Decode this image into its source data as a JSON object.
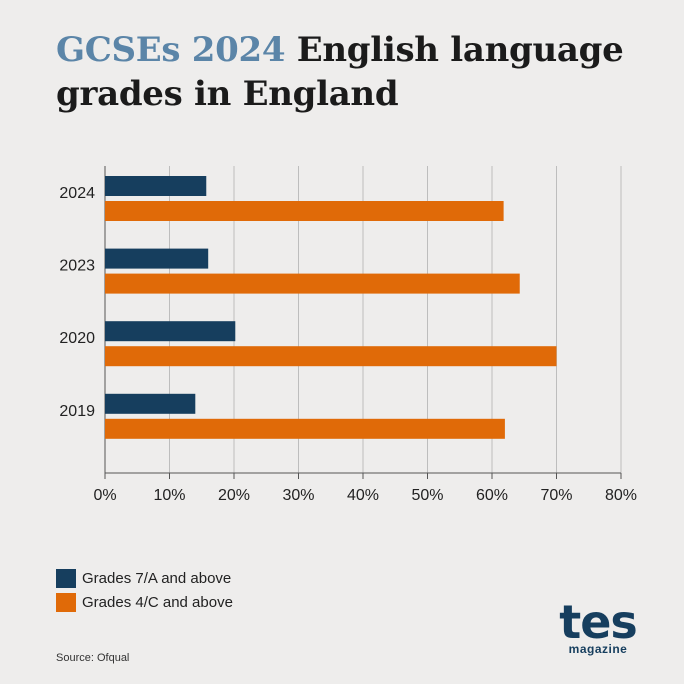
{
  "title": {
    "highlight": "GCSEs 2024",
    "rest": " English language grades in England"
  },
  "colors": {
    "title_highlight": "#5b85a8",
    "series_a": "#163e5e",
    "series_b": "#e06a08",
    "grid": "#bdbdbd"
  },
  "chart_data": {
    "type": "bar",
    "orientation": "horizontal",
    "categories": [
      "2024",
      "2023",
      "2020",
      "2019"
    ],
    "series": [
      {
        "name": "Grades 7/A and above",
        "values": [
          15.7,
          16.0,
          20.2,
          14.0
        ]
      },
      {
        "name": "Grades 4/C and above",
        "values": [
          61.8,
          64.3,
          70.0,
          62.0
        ]
      }
    ],
    "xlim": [
      0,
      80
    ],
    "x_ticks": [
      "0%",
      "10%",
      "20%",
      "30%",
      "40%",
      "50%",
      "60%",
      "70%",
      "80%"
    ],
    "grid": "vertical",
    "legend_position": "bottom-left"
  },
  "source": "Source: Ofqual",
  "logo": {
    "main": "tes",
    "sub": "magazine"
  }
}
